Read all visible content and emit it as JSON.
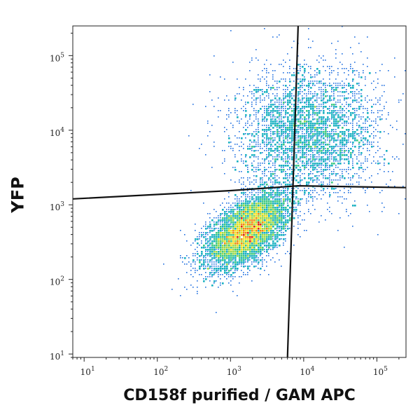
{
  "chart_data": {
    "type": "scatter",
    "subtype": "flow-cytometry density dot plot with quadrant gates",
    "xlabel": "CD158f purified / GAM APC",
    "ylabel": "YFP",
    "x_scale": "log",
    "y_scale": "log",
    "xlim": [
      7,
      250000
    ],
    "ylim": [
      9,
      250000
    ],
    "x_tick_labels": [
      {
        "value": 10,
        "base": "10",
        "exp": "1"
      },
      {
        "value": 100,
        "base": "10",
        "exp": "2"
      },
      {
        "value": 1000,
        "base": "10",
        "exp": "3"
      },
      {
        "value": 10000,
        "base": "10",
        "exp": "4"
      },
      {
        "value": 100000,
        "base": "10",
        "exp": "5"
      }
    ],
    "y_tick_labels": [
      {
        "value": 10,
        "base": "10",
        "exp": "1"
      },
      {
        "value": 100,
        "base": "10",
        "exp": "2"
      },
      {
        "value": 1000,
        "base": "10",
        "exp": "3"
      },
      {
        "value": 10000,
        "base": "10",
        "exp": "4"
      },
      {
        "value": 100000,
        "base": "10",
        "exp": "5"
      }
    ],
    "populations": [
      {
        "center_x": 1700,
        "center_y": 450,
        "spread_log_x": 0.28,
        "spread_log_y": 0.25,
        "correlation": 0.55,
        "share": 0.6
      },
      {
        "center_x": 12000,
        "center_y": 9000,
        "spread_log_x": 0.5,
        "spread_log_y": 0.45,
        "correlation": 0.05,
        "share": 0.4
      }
    ],
    "color_scale": [
      "#0a1acc",
      "#1f6fe0",
      "#18b0c0",
      "#3cc880",
      "#9ad84a",
      "#f0e020",
      "#f08a10",
      "#e02010"
    ],
    "gates": [
      {
        "orientation": "vertical",
        "points": [
          [
            8400,
            250000
          ],
          [
            6000,
            9
          ]
        ]
      },
      {
        "orientation": "horizontal",
        "points": [
          [
            7,
            1200
          ],
          [
            1000,
            1550
          ],
          [
            8400,
            1800
          ],
          [
            250000,
            1700
          ]
        ]
      }
    ],
    "grid": false,
    "legend": "none"
  }
}
